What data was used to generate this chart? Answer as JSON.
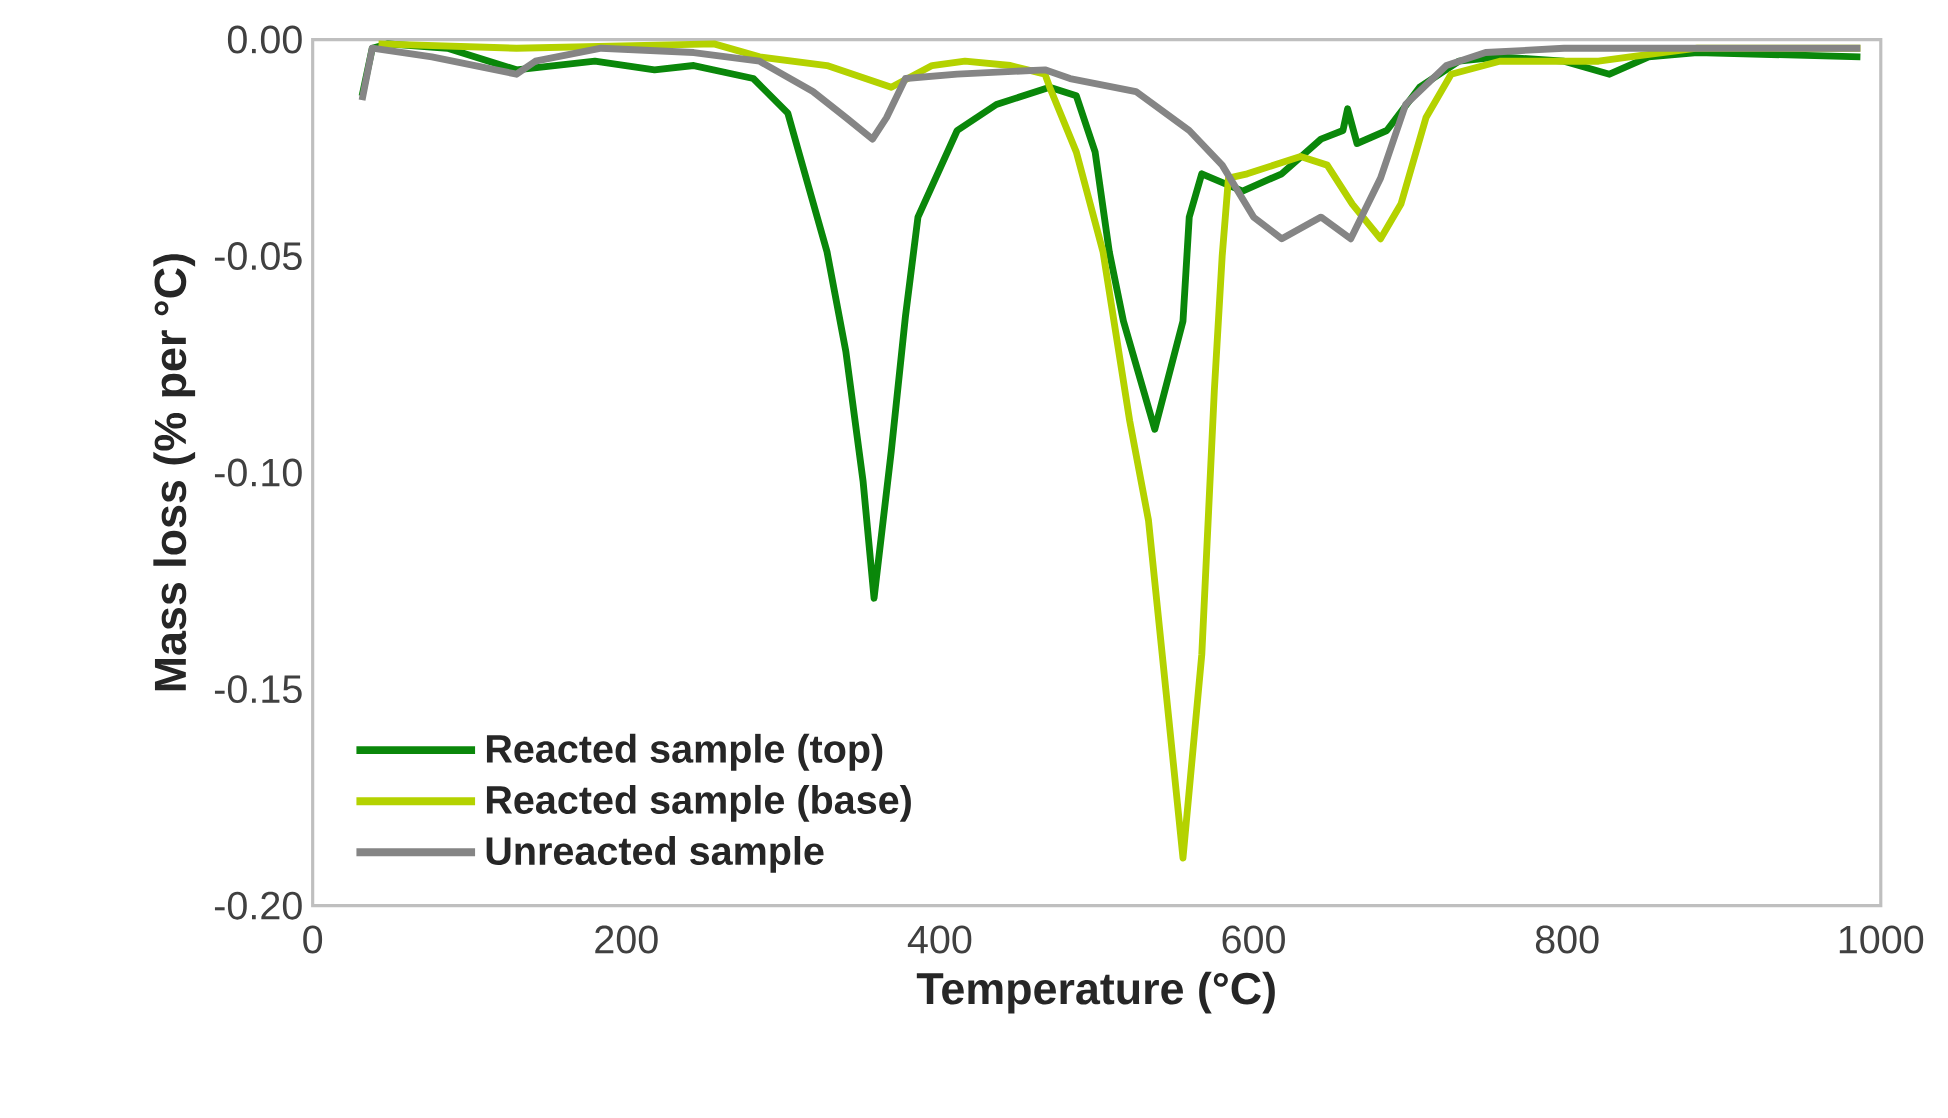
{
  "chart_data": {
    "type": "line",
    "xlabel": "Temperature (°C)",
    "ylabel": "Mass loss (% per °C)",
    "xlim": [
      0,
      1000
    ],
    "ylim": [
      -0.2,
      0
    ],
    "xticks": [
      0,
      200,
      400,
      600,
      800,
      1000
    ],
    "yticks": [
      {
        "value": 0,
        "label": "0.00"
      },
      {
        "value": -0.05,
        "label": "-0.05"
      },
      {
        "value": -0.1,
        "label": "-0.10"
      },
      {
        "value": -0.15,
        "label": "-0.15"
      },
      {
        "value": -0.2,
        "label": "-0.20"
      }
    ],
    "grid": false,
    "legend": "bottom left",
    "marker": "none",
    "line_style": "solid",
    "series": [
      {
        "name": "Reacted sample (top)",
        "color": "#0a870a",
        "x": [
          31.5,
          38,
          48,
          86,
          130,
          180,
          218,
          243,
          281,
          303,
          310,
          328,
          340,
          351,
          358,
          369,
          378,
          386,
          411,
          436,
          470,
          487,
          499,
          508,
          517,
          537,
          555,
          559,
          567,
          593,
          618,
          643,
          657,
          660,
          666,
          685,
          706,
          731,
          757,
          798,
          827,
          852,
          883,
          987
        ],
        "values": [
          -0.013,
          -0.002,
          -0.001,
          -0.002,
          -0.007,
          -0.005,
          -0.007,
          -0.006,
          -0.009,
          -0.017,
          -0.026,
          -0.049,
          -0.072,
          -0.102,
          -0.129,
          -0.095,
          -0.064,
          -0.041,
          -0.021,
          -0.015,
          -0.011,
          -0.013,
          -0.026,
          -0.049,
          -0.065,
          -0.09,
          -0.065,
          -0.041,
          -0.031,
          -0.035,
          -0.031,
          -0.023,
          -0.021,
          -0.016,
          -0.024,
          -0.021,
          -0.011,
          -0.005,
          -0.004,
          -0.005,
          -0.008,
          -0.004,
          -0.003,
          -0.004
        ]
      },
      {
        "name": "Reacted sample (base)",
        "color": "#b4d200",
        "x": [
          42,
          130,
          256,
          285,
          328,
          369,
          395,
          416,
          445,
          467,
          470,
          487,
          504,
          521,
          533,
          546,
          555,
          567,
          575,
          580,
          584,
          596,
          630,
          647,
          663,
          681,
          694,
          710,
          726,
          757,
          820,
          840,
          883,
          987
        ],
        "values": [
          -0.001,
          -0.002,
          -0.001,
          -0.004,
          -0.006,
          -0.011,
          -0.006,
          -0.005,
          -0.006,
          -0.008,
          -0.011,
          -0.026,
          -0.049,
          -0.088,
          -0.111,
          -0.157,
          -0.189,
          -0.142,
          -0.081,
          -0.05,
          -0.032,
          -0.031,
          -0.027,
          -0.029,
          -0.038,
          -0.046,
          -0.038,
          -0.018,
          -0.008,
          -0.005,
          -0.005,
          -0.004,
          -0.002,
          -0.002
        ]
      },
      {
        "name": "Unreacted sample",
        "color": "#858585",
        "x": [
          31.5,
          38,
          76,
          130,
          142,
          184,
          243,
          285,
          319,
          340,
          357,
          366,
          378,
          411,
          467,
          483,
          525,
          559,
          580,
          600,
          618,
          643,
          662,
          681,
          697,
          723,
          748,
          798,
          987
        ],
        "values": [
          -0.014,
          -0.002,
          -0.004,
          -0.008,
          -0.005,
          -0.002,
          -0.003,
          -0.005,
          -0.012,
          -0.018,
          -0.023,
          -0.018,
          -0.009,
          -0.008,
          -0.007,
          -0.009,
          -0.012,
          -0.021,
          -0.029,
          -0.041,
          -0.046,
          -0.041,
          -0.046,
          -0.032,
          -0.015,
          -0.006,
          -0.003,
          -0.002,
          -0.002
        ]
      }
    ]
  }
}
